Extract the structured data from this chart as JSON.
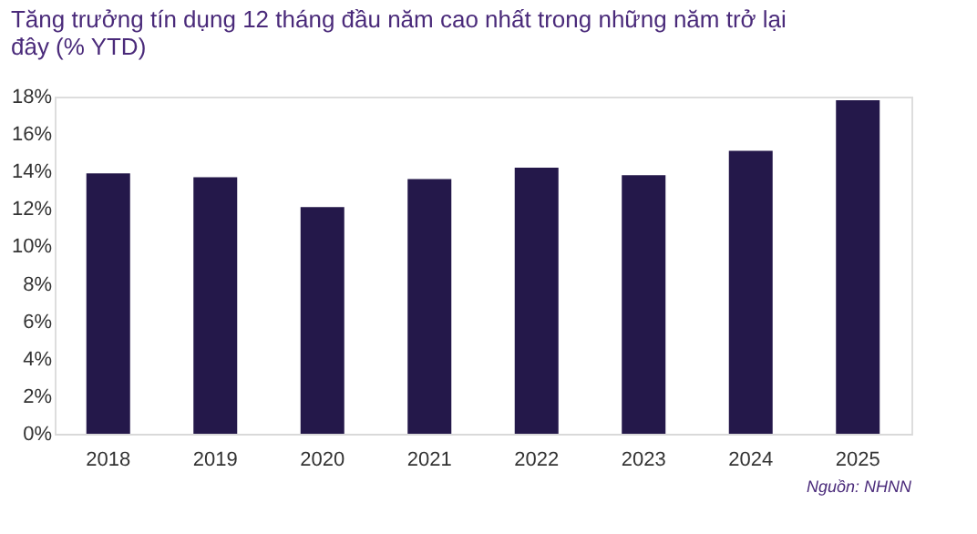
{
  "chart_data": {
    "type": "bar",
    "title": "Tăng trưởng tín dụng 12 tháng đầu năm cao nhất trong những năm trở lại đây (% YTD)",
    "categories": [
      "2018",
      "2019",
      "2020",
      "2021",
      "2022",
      "2023",
      "2024",
      "2025"
    ],
    "values": [
      13.9,
      13.7,
      12.1,
      13.6,
      14.2,
      13.8,
      15.1,
      17.8
    ],
    "color": "#24184a",
    "ylim": [
      0,
      18
    ],
    "yticks": [
      {
        "value": 0,
        "label": "0%"
      },
      {
        "value": 2,
        "label": "2%"
      },
      {
        "value": 4,
        "label": "4%"
      },
      {
        "value": 6,
        "label": "6%"
      },
      {
        "value": 8,
        "label": "8%"
      },
      {
        "value": 10,
        "label": "10%"
      },
      {
        "value": 12,
        "label": "12%"
      },
      {
        "value": 14,
        "label": "14%"
      },
      {
        "value": 16,
        "label": "16%"
      },
      {
        "value": 18,
        "label": "18%"
      }
    ],
    "grid": false,
    "annotations": [
      "Nguồn: NHNN"
    ]
  }
}
